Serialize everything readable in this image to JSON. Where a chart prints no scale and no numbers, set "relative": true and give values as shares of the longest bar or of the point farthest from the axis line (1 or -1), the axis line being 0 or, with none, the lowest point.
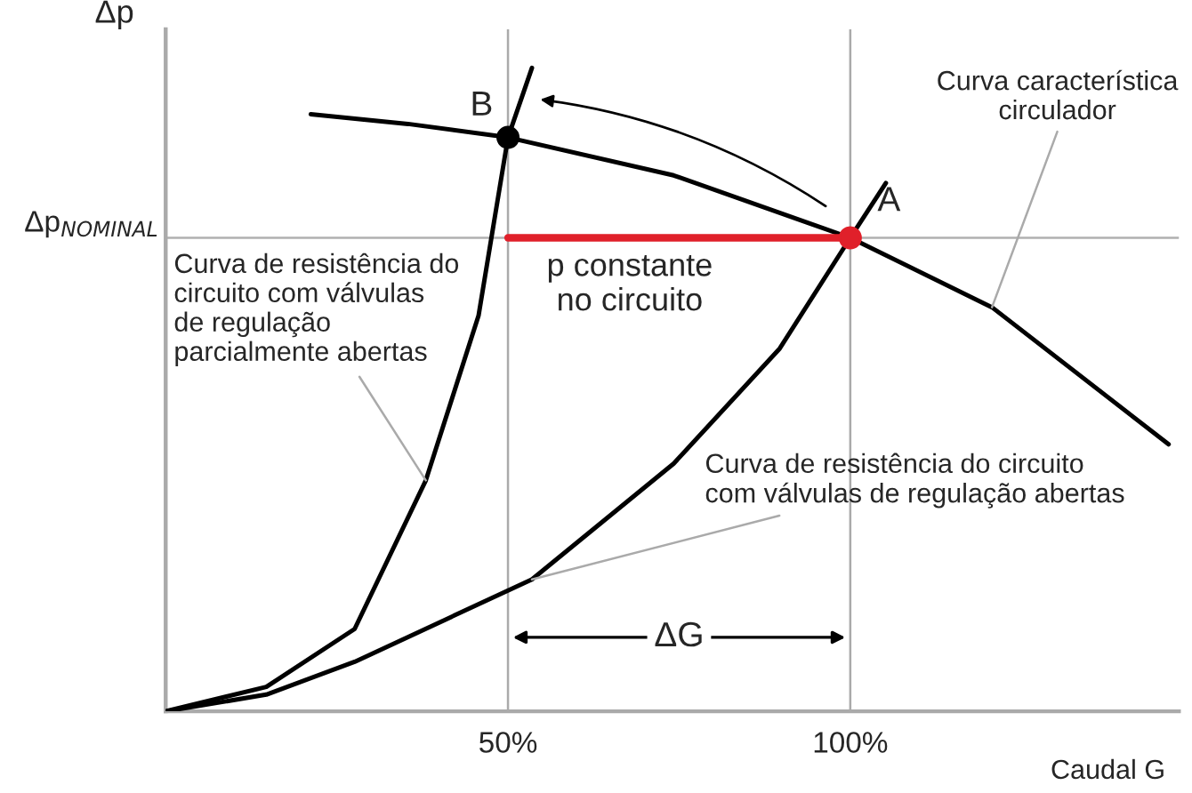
{
  "chart_data": {
    "type": "line",
    "relative": true,
    "xlabel": "Caudal G",
    "ylabel": "Δp",
    "xlim": [
      0,
      148
    ],
    "xticks": [
      {
        "value": 50,
        "label": "50%"
      },
      {
        "value": 100,
        "label": "100%"
      }
    ],
    "grid": "x",
    "series": [
      {
        "color": "#000000",
        "x": [
          21.2,
          35.4,
          50,
          74.2,
          100,
          120.7,
          146.5
        ],
        "values": [
          0.928,
          0.913,
          0.892,
          0.833,
          0.736,
          0.628,
          0.415
        ]
      },
      {
        "color": "#000000",
        "x": [
          0,
          14.7,
          27.6,
          38.0,
          45.7,
          50,
          53.5
        ],
        "values": [
          0,
          0.038,
          0.128,
          0.359,
          0.615,
          0.892,
          1.0
        ]
      },
      {
        "color": "#000000",
        "x": [
          0,
          14.7,
          27.6,
          53.5,
          74.2,
          89.7,
          100,
          105.2
        ],
        "values": [
          0,
          0.026,
          0.077,
          0.205,
          0.385,
          0.564,
          0.736,
          0.821
        ]
      },
      {
        "color": "#e0202a",
        "x": [
          50,
          100
        ],
        "values": [
          0.736,
          0.736
        ]
      },
      {
        "type": "scatter",
        "color": "#000000",
        "x": [
          50
        ],
        "values": [
          0.892
        ]
      },
      {
        "type": "scatter",
        "color": "#e0202a",
        "x": [
          100
        ],
        "values": [
          0.736
        ]
      }
    ],
    "ref_lines": [
      {
        "axis": "y",
        "value": 0.736,
        "label": "Δp$_{NOMINAL}$",
        "color": "#b0b0b0"
      }
    ],
    "annotations": [
      {
        "text": "A",
        "x": 100,
        "y": 0.736
      },
      {
        "text": "B",
        "x": 50,
        "y": 0.892
      },
      "Curva característica\ncirculador",
      {
        "text": "Curva de resistência do\ncircuito com válvulas\nde regulação\nparcialmente abertas",
        "x": 38.0,
        "y": 0.359
      },
      {
        "text": "Curva de resistência do circuito\ncom válvulas de regulação abertas",
        "x": 53.5,
        "y": 0.205
      },
      {
        "text": "p constante\nno circuito",
        "x": 75,
        "y": 0.736
      },
      {
        "text": "ΔG",
        "x": 75,
        "y": 0.115
      }
    ]
  }
}
